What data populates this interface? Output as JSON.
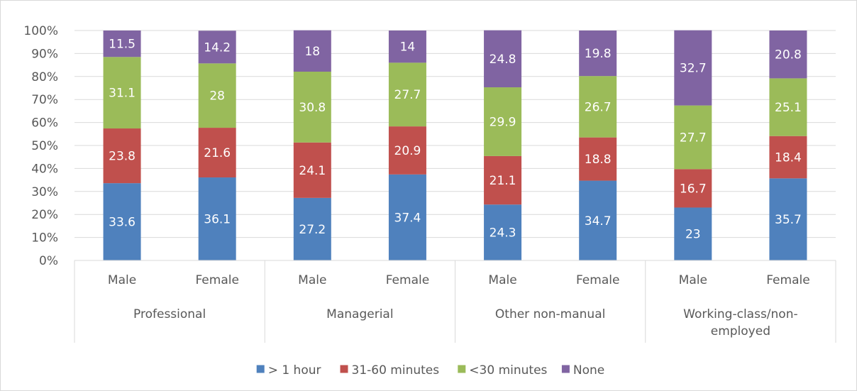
{
  "chart_data": {
    "type": "bar",
    "stacked": true,
    "percent": true,
    "title": "",
    "ylim": [
      0,
      100
    ],
    "yticks": [
      "0%",
      "10%",
      "20%",
      "30%",
      "40%",
      "50%",
      "60%",
      "70%",
      "80%",
      "90%",
      "100%"
    ],
    "categories": [
      "Male",
      "Female",
      "Male",
      "Female",
      "Male",
      "Female",
      "Male",
      "Female"
    ],
    "groups": [
      {
        "label": "Professional",
        "lines": [
          "Professional"
        ]
      },
      {
        "label": "Managerial",
        "lines": [
          "Managerial"
        ]
      },
      {
        "label": "Other non-manual",
        "lines": [
          "Other non-manual"
        ]
      },
      {
        "label": "Working-class/non-employed",
        "lines": [
          "Working-class/non-",
          "employed"
        ]
      }
    ],
    "series": [
      {
        "name": "> 1 hour",
        "color": "#4f81bd",
        "values": [
          33.6,
          36.1,
          27.2,
          37.4,
          24.3,
          34.7,
          23,
          35.7
        ]
      },
      {
        "name": "31-60 minutes",
        "color": "#c0504d",
        "values": [
          23.8,
          21.6,
          24.1,
          20.9,
          21.1,
          18.8,
          16.7,
          18.4
        ]
      },
      {
        "name": "<30 minutes",
        "color": "#9bbb59",
        "values": [
          31.1,
          28,
          30.8,
          27.7,
          29.9,
          26.7,
          27.7,
          25.1
        ]
      },
      {
        "name": "None",
        "color": "#8064a2",
        "values": [
          11.5,
          14.2,
          18,
          14,
          24.8,
          19.8,
          32.7,
          20.8
        ]
      }
    ],
    "grid": true,
    "legend_position": "bottom"
  }
}
